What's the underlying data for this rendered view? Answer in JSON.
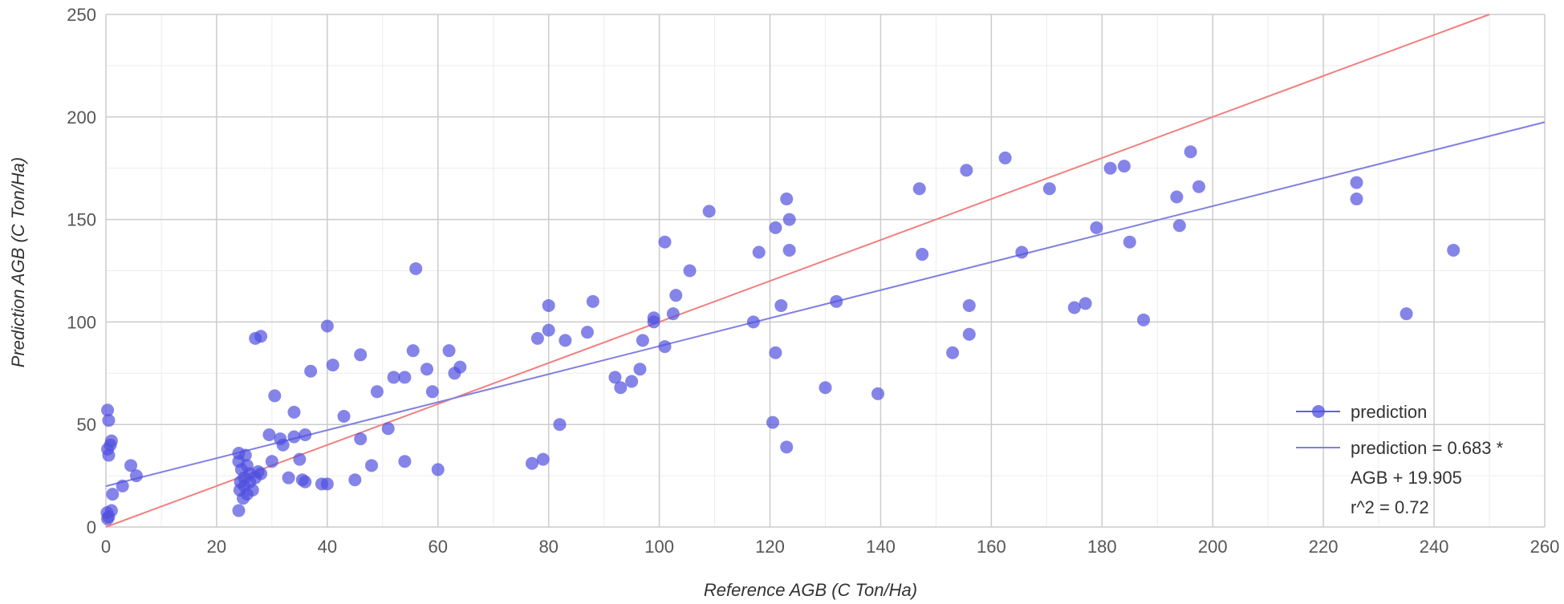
{
  "chart_data": {
    "type": "scatter",
    "title": "",
    "xlabel": "Reference AGB (C Ton/Ha)",
    "ylabel": "Prediction AGB (C Ton/Ha)",
    "xlim": [
      0,
      260
    ],
    "ylim": [
      0,
      250
    ],
    "x_ticks": [
      "0",
      "20",
      "40",
      "60",
      "80",
      "100",
      "120",
      "140",
      "160",
      "180",
      "200",
      "220",
      "240",
      "260"
    ],
    "y_ticks": [
      "0",
      "50",
      "100",
      "150",
      "200",
      "250"
    ],
    "grid": true,
    "legend_position": "bottom-right",
    "colors": {
      "points": "#5050e0",
      "trend": "#8080e0",
      "identity": "#f08080"
    },
    "series": [
      {
        "name": "prediction",
        "type": "scatter",
        "points": [
          [
            0.3,
            57
          ],
          [
            0.5,
            52
          ],
          [
            0.3,
            38
          ],
          [
            0.5,
            35
          ],
          [
            0.8,
            40
          ],
          [
            1,
            42
          ],
          [
            0.2,
            7
          ],
          [
            0.5,
            5
          ],
          [
            1,
            8
          ],
          [
            0.3,
            4
          ],
          [
            1.2,
            16
          ],
          [
            3,
            20
          ],
          [
            4.5,
            30
          ],
          [
            5.5,
            25
          ],
          [
            24,
            36
          ],
          [
            24,
            32
          ],
          [
            24.5,
            28
          ],
          [
            24.3,
            22
          ],
          [
            24.2,
            18
          ],
          [
            24,
            8
          ],
          [
            25,
            24
          ],
          [
            25,
            20
          ],
          [
            25.5,
            16
          ],
          [
            25.5,
            30
          ],
          [
            26,
            26
          ],
          [
            26,
            22
          ],
          [
            26.5,
            18
          ],
          [
            27,
            24
          ],
          [
            27.5,
            27
          ],
          [
            28,
            26
          ],
          [
            25.2,
            35
          ],
          [
            24.8,
            14
          ],
          [
            27,
            92
          ],
          [
            28,
            93
          ],
          [
            29.5,
            45
          ],
          [
            30,
            32
          ],
          [
            30.5,
            64
          ],
          [
            31.5,
            43
          ],
          [
            32,
            40
          ],
          [
            33,
            24
          ],
          [
            34,
            56
          ],
          [
            34,
            44
          ],
          [
            35,
            33
          ],
          [
            35.5,
            23
          ],
          [
            36,
            22
          ],
          [
            36,
            45
          ],
          [
            37,
            76
          ],
          [
            39,
            21
          ],
          [
            40,
            98
          ],
          [
            40,
            21
          ],
          [
            41,
            79
          ],
          [
            43,
            54
          ],
          [
            45,
            23
          ],
          [
            46,
            84
          ],
          [
            46,
            43
          ],
          [
            48,
            30
          ],
          [
            49,
            66
          ],
          [
            51,
            48
          ],
          [
            52,
            73
          ],
          [
            54,
            73
          ],
          [
            54,
            32
          ],
          [
            55.5,
            86
          ],
          [
            56,
            126
          ],
          [
            58,
            77
          ],
          [
            59,
            66
          ],
          [
            60,
            28
          ],
          [
            62,
            86
          ],
          [
            63,
            75
          ],
          [
            64,
            78
          ],
          [
            77,
            31
          ],
          [
            78,
            92
          ],
          [
            79,
            33
          ],
          [
            80,
            96
          ],
          [
            80,
            108
          ],
          [
            82,
            50
          ],
          [
            83,
            91
          ],
          [
            87,
            95
          ],
          [
            88,
            110
          ],
          [
            92,
            73
          ],
          [
            93,
            68
          ],
          [
            95,
            71
          ],
          [
            96.5,
            77
          ],
          [
            97,
            91
          ],
          [
            99,
            100
          ],
          [
            99,
            102
          ],
          [
            101,
            139
          ],
          [
            101,
            88
          ],
          [
            102.5,
            104
          ],
          [
            103,
            113
          ],
          [
            105.5,
            125
          ],
          [
            109,
            154
          ],
          [
            117,
            100
          ],
          [
            118,
            134
          ],
          [
            120.5,
            51
          ],
          [
            121,
            85
          ],
          [
            121,
            146
          ],
          [
            122,
            108
          ],
          [
            123,
            39
          ],
          [
            123,
            160
          ],
          [
            123.5,
            150
          ],
          [
            123.5,
            135
          ],
          [
            130,
            68
          ],
          [
            132,
            110
          ],
          [
            139.5,
            65
          ],
          [
            147,
            165
          ],
          [
            147.5,
            133
          ],
          [
            153,
            85
          ],
          [
            155.5,
            174
          ],
          [
            156,
            108
          ],
          [
            156,
            94
          ],
          [
            162.5,
            180
          ],
          [
            165.5,
            134
          ],
          [
            170.5,
            165
          ],
          [
            175,
            107
          ],
          [
            177,
            109
          ],
          [
            179,
            146
          ],
          [
            181.5,
            175
          ],
          [
            184,
            176
          ],
          [
            185,
            139
          ],
          [
            187.5,
            101
          ],
          [
            193.5,
            161
          ],
          [
            194,
            147
          ],
          [
            196,
            183
          ],
          [
            197.5,
            166
          ],
          [
            226,
            168
          ],
          [
            226,
            160
          ],
          [
            235,
            104
          ],
          [
            243.5,
            135
          ]
        ]
      },
      {
        "name": "prediction = 0.683 * AGB + 19.905",
        "type": "trendline",
        "slope": 0.683,
        "intercept": 19.905
      }
    ],
    "identity_line": {
      "slope": 1,
      "intercept": 0
    },
    "legend": {
      "point_label": "prediction",
      "trend_line1": "prediction = 0.683 *",
      "trend_line2": "AGB + 19.905",
      "trend_line3": "r^2 = 0.72"
    }
  }
}
